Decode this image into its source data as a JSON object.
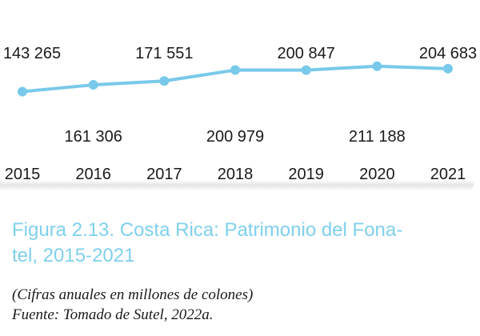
{
  "chart_data": {
    "type": "line",
    "categories": [
      "2015",
      "2016",
      "2017",
      "2018",
      "2019",
      "2020",
      "2021"
    ],
    "values": [
      143265,
      161306,
      171551,
      200979,
      200847,
      211188,
      204683
    ],
    "value_labels": [
      "143 265",
      "161 306",
      "171 551",
      "200 979",
      "200 847",
      "211 188",
      "204 683"
    ],
    "grid": false,
    "legend": "none",
    "colors": {
      "line": "#79c9ea",
      "text": "#1a1a1a"
    }
  },
  "caption": {
    "line1": "Figura 2.13. Costa Rica: Patrimonio del Fona-",
    "line2": "tel, 2015-2021",
    "color": "#7fd0ec"
  },
  "notes": {
    "units": "(Cifras anuales en millones de colones)",
    "source": "Fuente: Tomado de Sutel, 2022a."
  }
}
